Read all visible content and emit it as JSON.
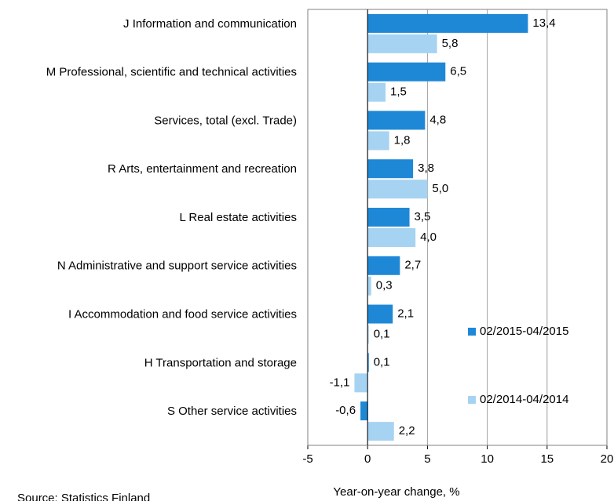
{
  "chart_data": {
    "type": "bar",
    "orientation": "horizontal",
    "categories": [
      "J Information and communication",
      "M Professional, scientific and technical activities",
      "Services, total (excl. Trade)",
      "R Arts, entertainment and recreation",
      "L Real estate activities",
      "N Administrative and support service activities",
      "I Accommodation and food service activities",
      "H Transportation and storage",
      "S Other service activities"
    ],
    "series": [
      {
        "name": "02/2015-04/2015",
        "color": "#1f88d6",
        "values": [
          13.4,
          6.5,
          4.8,
          3.8,
          3.5,
          2.7,
          2.1,
          0.1,
          -0.6
        ],
        "value_labels": [
          "13,4",
          "6,5",
          "4,8",
          "3,8",
          "3,5",
          "2,7",
          "2,1",
          "0,1",
          "-0,6"
        ]
      },
      {
        "name": "02/2014-04/2014",
        "color": "#a6d3f2",
        "values": [
          5.8,
          1.5,
          1.8,
          5.0,
          4.0,
          0.3,
          0.1,
          -1.1,
          2.2
        ],
        "value_labels": [
          "5,8",
          "1,5",
          "1,8",
          "5,0",
          "4,0",
          "0,3",
          "0,1",
          "-1,1",
          "2,2"
        ]
      }
    ],
    "xlim": [
      -5,
      20
    ],
    "xticks": [
      -5,
      0,
      5,
      10,
      15,
      20
    ],
    "grid": true,
    "xlabel": "Year-on-year change, %",
    "source": "Source: Statistics Finland"
  }
}
